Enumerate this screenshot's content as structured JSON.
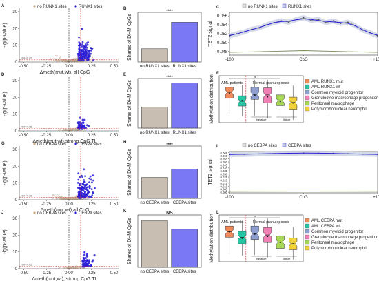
{
  "colors": {
    "blue": "#2a1fd6",
    "blue_bar": "#7b78f5",
    "tan": "#c9beb2",
    "tan_point": "#c8a884",
    "grey_point": "#b9b9b9",
    "red_line": "#d0302a",
    "dark_line": "#555555",
    "band": "#c7cde0"
  },
  "volcano_legend": [
    "no RUNX1 sites",
    "RUNX1 sites"
  ],
  "volcano_legend_cebpa": [
    "no CEBPA sites",
    "CEBPA sites"
  ],
  "volcano_fdr": "FDR=0.05",
  "tet2_ylabel": "TET2 signal",
  "tet2_xlabel": "CpG",
  "meth_ylabel": "Methylation distribution",
  "charts": [
    {
      "id": "A",
      "type": "scatter",
      "xlabel": "Δmeth(mut,wt), all CpG",
      "ylabel": "-lg(p-value)",
      "xticks": [
        "-0.50",
        "-0.25",
        "0.00",
        "0.25",
        "0.50"
      ],
      "yticks": [
        "0",
        "10",
        "20",
        "30"
      ],
      "xlim": [
        -0.55,
        0.55
      ],
      "ylim": [
        0,
        32
      ],
      "vlines": [
        0.0,
        0.13
      ],
      "hline": 1.3,
      "legend": [
        "no RUNX1 sites",
        "RUNX1 sites"
      ]
    },
    {
      "id": "D",
      "type": "scatter",
      "xlabel": "Δmeth(mut,wt),strong CpG TL",
      "ylabel": "-lg(p-value)",
      "xticks": [
        "-0.50",
        "-0.25",
        "0.00",
        "0.25",
        "0.50"
      ],
      "yticks": [
        "0",
        "10",
        "20",
        "30"
      ],
      "xlim": [
        -0.55,
        0.55
      ],
      "ylim": [
        0,
        32
      ],
      "vlines": [
        0.0,
        0.13
      ],
      "hline": 1.3
    },
    {
      "id": "G",
      "type": "scatter",
      "xlabel": "Δmeth(mut,wt),all CpG",
      "ylabel": "-lg(p-value)",
      "xticks": [
        "-0.50",
        "-0.25",
        "0.00",
        "0.25",
        "0.50"
      ],
      "yticks": [
        "0",
        "10",
        "20",
        "30"
      ],
      "xlim": [
        -0.55,
        0.55
      ],
      "ylim": [
        0,
        32
      ],
      "vlines": [
        0.0,
        0.13
      ],
      "hline": 1.3,
      "legend": [
        "no CEBPA sites",
        "CEBPA sites"
      ]
    },
    {
      "id": "J",
      "type": "scatter",
      "xlabel": "Δmeth(mut,wt), strong CpG TL",
      "ylabel": "-lg(p-value)",
      "xticks": [
        "-0.50",
        "-0.25",
        "0.00",
        "0.25",
        "0.50"
      ],
      "yticks": [
        "0",
        "10",
        "20",
        "30"
      ],
      "xlim": [
        -0.55,
        0.55
      ],
      "ylim": [
        0,
        32
      ],
      "vlines": [
        0.0,
        0.13
      ],
      "hline": 1.3,
      "legend": [
        "no CEBPA sites",
        "CEBPA sites"
      ]
    },
    {
      "id": "B",
      "type": "bar",
      "ylabel": "Shares of DHM CpGs",
      "categories": [
        "no RUNX1 sites",
        "RUNX1 sites"
      ],
      "values": [
        0.2,
        0.6
      ],
      "ylim": [
        0,
        0.75
      ],
      "significance": "****"
    },
    {
      "id": "E",
      "type": "bar",
      "ylabel": "Shares of DHM CpGs",
      "categories": [
        "no RUNX1 sites",
        "RUNX1 sites"
      ],
      "values": [
        0.32,
        0.68
      ],
      "ylim": [
        0,
        0.75
      ],
      "significance": "****"
    },
    {
      "id": "H",
      "type": "bar",
      "ylabel": "Shares of DHM CpGs",
      "categories": [
        "no CEBPA sites",
        "CEBPA sites"
      ],
      "values": [
        0.3,
        0.42
      ],
      "ylim": [
        0,
        0.75
      ],
      "significance": "****"
    },
    {
      "id": "K",
      "type": "bar",
      "ylabel": "Shares of DHM CpGs",
      "categories": [
        "no CEBPA sites",
        "CEBPA sites"
      ],
      "values": [
        0.55,
        0.45
      ],
      "ylim": [
        0,
        0.62
      ],
      "significance": "NS"
    },
    {
      "id": "C",
      "type": "line",
      "ylabel": "TET2 signal",
      "xlabel": "CpG",
      "xticks": [
        "-100",
        "CpG",
        "+100"
      ],
      "xlim": [
        -100,
        100
      ],
      "yticks": [
        "0.048",
        "0.050",
        "0.052",
        "0.054",
        "0.056"
      ],
      "ylim": [
        0.0472,
        0.0568
      ],
      "legend": [
        "no RUNX1 sites",
        "RUNX1 sites"
      ],
      "series": [
        {
          "name": "RUNX1 sites",
          "x": [
            -100,
            -90,
            -80,
            -70,
            -60,
            -50,
            -40,
            -30,
            -20,
            -10,
            0,
            10,
            20,
            30,
            40,
            50,
            60,
            70,
            80,
            90,
            100
          ],
          "y": [
            0.0515,
            0.052,
            0.0524,
            0.053,
            0.0533,
            0.054,
            0.0545,
            0.0549,
            0.0546,
            0.0552,
            0.0556,
            0.055,
            0.0552,
            0.0545,
            0.0549,
            0.0543,
            0.0546,
            0.0538,
            0.0528,
            0.0522,
            0.0515
          ]
        },
        {
          "name": "no RUNX1 sites",
          "x": [
            -100,
            -50,
            0,
            50,
            100
          ],
          "y": [
            0.0478,
            0.048,
            0.0482,
            0.048,
            0.0478
          ]
        }
      ]
    },
    {
      "id": "I",
      "type": "line",
      "ylabel": "TET2 signal",
      "xlabel": "CpG",
      "xticks": [
        "-100",
        "CpG",
        "+100"
      ],
      "xlim": [
        -100,
        100
      ],
      "yticks": [
        "0.000",
        "0.005",
        "0.010",
        "0.015",
        "0.020",
        "0.025",
        "0.030",
        "0.035",
        "0.040",
        "0.045",
        "0.050",
        "0.055",
        "0.060",
        "0.065"
      ],
      "ylim": [
        -0.001,
        0.067
      ],
      "legend": [
        "no CEBPA sites",
        "CEBPA sites"
      ],
      "series": [
        {
          "name": "CEBPA sites",
          "x": [
            -100,
            -80,
            -60,
            -40,
            -20,
            0,
            20,
            40,
            60,
            80,
            100
          ],
          "y": [
            0.062,
            0.0625,
            0.0632,
            0.0638,
            0.0642,
            0.0645,
            0.0644,
            0.064,
            0.0634,
            0.0628,
            0.0622
          ]
        },
        {
          "name": "no CEBPA sites",
          "x": [
            -100,
            -50,
            0,
            50,
            100
          ],
          "y": [
            0.0015,
            0.0016,
            0.0017,
            0.0016,
            0.0015
          ]
        }
      ]
    },
    {
      "id": "F",
      "type": "box",
      "ylabel": "Methylation distribution",
      "ylim": [
        0,
        1.05
      ],
      "ns": "ns",
      "group_labels": [
        "AML patients",
        "Normal granulopoesis"
      ],
      "sub_labels": [
        "Immature",
        "Mature"
      ],
      "legend": [
        "AML RUNX1 mut",
        "AML RUNX1 wt",
        "Common myeloid progenitor",
        "Granulocyte macrophage progenitor",
        "Peritoneal macrophage",
        "Polymorphonuclear neutrophil"
      ],
      "colors": [
        "#f08a5b",
        "#25c6a4",
        "#8fa0d0",
        "#ef7fb4",
        "#a6d854",
        "#f2d23b"
      ],
      "boxes": [
        {
          "q1": 0.55,
          "median": 0.68,
          "q3": 0.79,
          "low": 0.2,
          "high": 0.97,
          "mean": 0.66
        },
        {
          "q1": 0.37,
          "median": 0.48,
          "q3": 0.6,
          "low": 0.14,
          "high": 0.85,
          "mean": 0.49
        },
        {
          "q1": 0.52,
          "median": 0.63,
          "q3": 0.79,
          "low": 0.16,
          "high": 0.96,
          "mean": 0.61
        },
        {
          "q1": 0.44,
          "median": 0.62,
          "q3": 0.78,
          "low": 0.1,
          "high": 0.96,
          "mean": 0.58
        },
        {
          "q1": 0.38,
          "median": 0.49,
          "q3": 0.62,
          "low": 0.12,
          "high": 0.86,
          "mean": 0.47
        },
        {
          "q1": 0.3,
          "median": 0.45,
          "q3": 0.57,
          "low": 0.06,
          "high": 0.83,
          "mean": 0.44
        }
      ]
    },
    {
      "id": "L",
      "type": "box",
      "ylabel": "Methylation distribution",
      "ylim": [
        0,
        1.05
      ],
      "ns": "ns",
      "group_labels": [
        "AML patients",
        "Normal granulopoesis"
      ],
      "sub_labels": [
        "Immature",
        "Mature"
      ],
      "legend": [
        "AML CEBPA mut",
        "AML CEBPA wt",
        "Common myeloid progenitor",
        "Granulocyte macrophage progenitor",
        "Peritoneal macrophage",
        "Polymorphonuclear neutrophil"
      ],
      "colors": [
        "#f08a5b",
        "#25c6a4",
        "#8fa0d0",
        "#ef7fb4",
        "#a6d854",
        "#f2d23b"
      ],
      "boxes": [
        {
          "q1": 0.55,
          "median": 0.67,
          "q3": 0.8,
          "low": 0.18,
          "high": 0.98,
          "mean": 0.67
        },
        {
          "q1": 0.4,
          "median": 0.55,
          "q3": 0.68,
          "low": 0.14,
          "high": 0.92,
          "mean": 0.53
        },
        {
          "q1": 0.5,
          "median": 0.63,
          "q3": 0.8,
          "low": 0.15,
          "high": 0.96,
          "mean": 0.62
        },
        {
          "q1": 0.43,
          "median": 0.6,
          "q3": 0.77,
          "low": 0.1,
          "high": 0.97,
          "mean": 0.57
        },
        {
          "q1": 0.3,
          "median": 0.44,
          "q3": 0.58,
          "low": 0.1,
          "high": 0.83,
          "mean": 0.43
        },
        {
          "q1": 0.27,
          "median": 0.4,
          "q3": 0.53,
          "low": 0.05,
          "high": 0.78,
          "mean": 0.4
        }
      ]
    }
  ]
}
